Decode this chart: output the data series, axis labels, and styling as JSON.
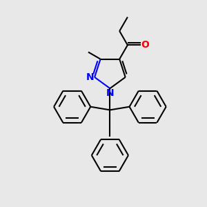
{
  "bg_color": "#e8e8e8",
  "line_color": "#000000",
  "nitrogen_color": "#0000ff",
  "oxygen_color": "#ff0000",
  "line_width": 1.5,
  "figsize": [
    3.0,
    3.0
  ],
  "dpi": 100,
  "xlim": [
    -4.5,
    4.5
  ],
  "ylim": [
    -5.0,
    4.5
  ]
}
